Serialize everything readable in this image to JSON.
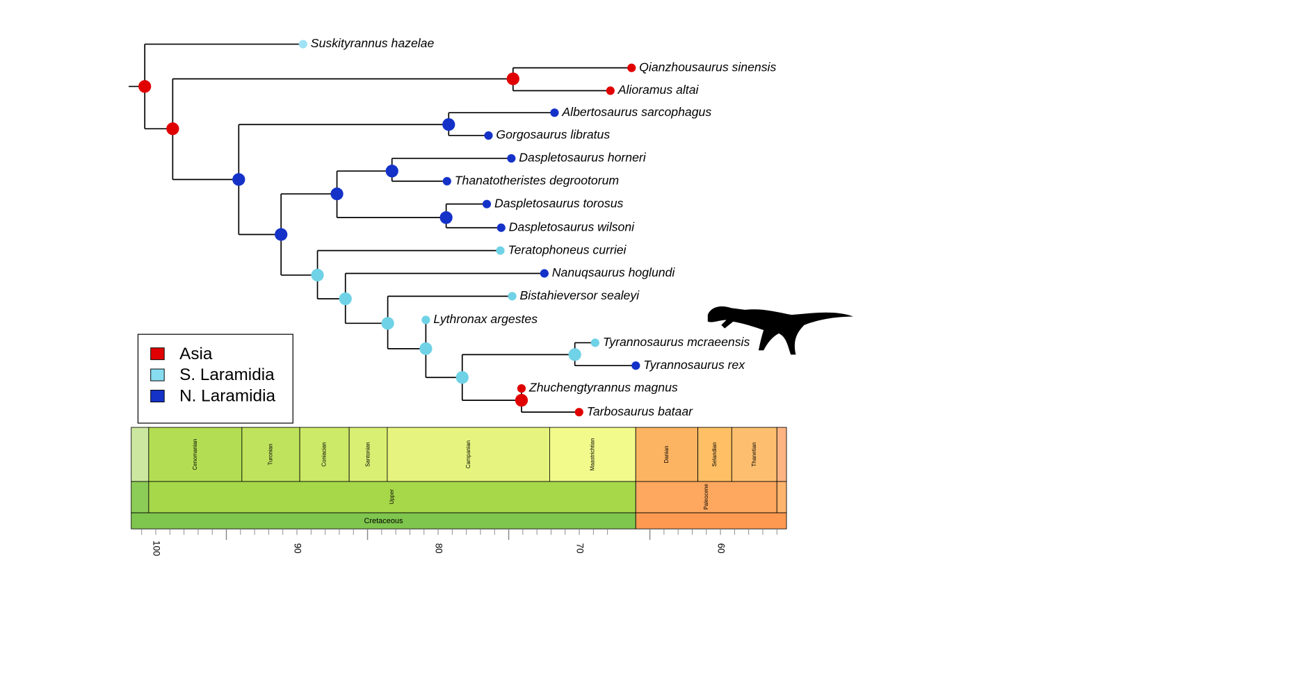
{
  "taxa": [
    "Suskityrannus hazelae",
    "Qianzhousaurus sinensis",
    "Alioramus altai",
    "Albertosaurus sarcophagus",
    "Gorgosaurus libratus",
    "Daspletosaurus horneri",
    "Thanatotheristes degrootorum",
    "Daspletosaurus torosus",
    "Daspletosaurus wilsoni",
    "Teratophoneus curriei",
    "Nanuqsaurus hoglundi",
    "Bistahieversor sealeyi",
    "Lythronax argestes",
    "Tyrannosaurus mcraeensis",
    "Tyrannosaurus rex",
    "Zhuchengtyrannus magnus",
    "Tarbosaurus bataar"
  ],
  "legend": [
    "Asia",
    "S. Laramidia",
    "N. Laramidia"
  ],
  "timescale": {
    "stages": [
      "Cenomanian",
      "Turonian",
      "Coniacian",
      "Santonian",
      "Campanian",
      "Maastrichtian",
      "Danian",
      "Selandian",
      "Thanetian"
    ],
    "epochs": [
      "Upper",
      "Paleocene"
    ],
    "periods": [
      "Cretaceous"
    ],
    "ticks": [
      100,
      90,
      80,
      70,
      60
    ]
  }
}
